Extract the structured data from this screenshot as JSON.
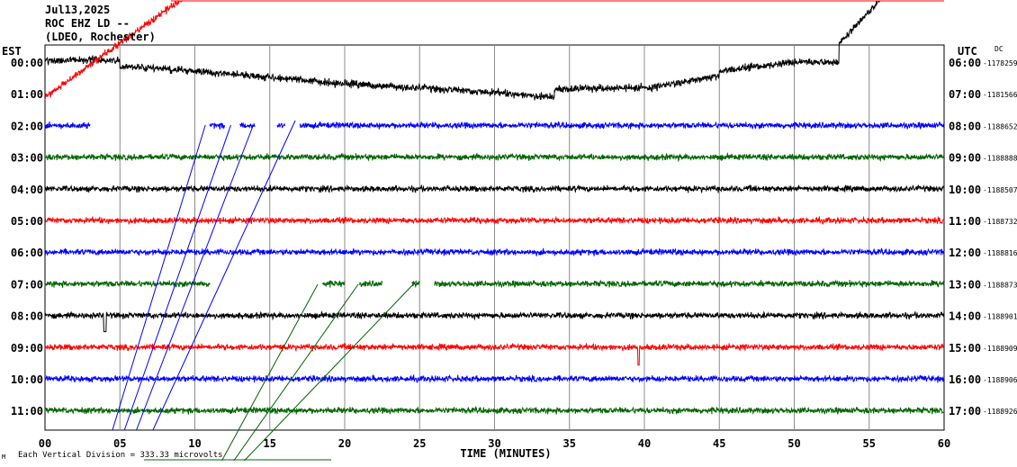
{
  "header": {
    "date": "Jul13,2025",
    "station": "ROC EHZ LD --",
    "network": "(LDEO, Rochester)",
    "left_zone": "EST",
    "right_zone": "UTC",
    "dc_label": "DC"
  },
  "footer": {
    "scale_note": "Each Vertical Division = 333.33 microvolts",
    "mark": "M"
  },
  "chart_data": {
    "type": "line",
    "title": "",
    "xlabel": "TIME (MINUTES)",
    "ylabel": "",
    "xlim": [
      0,
      60
    ],
    "x_ticks": [
      "00",
      "05",
      "10",
      "15",
      "20",
      "25",
      "30",
      "35",
      "40",
      "45",
      "50",
      "55",
      "60"
    ],
    "rows": [
      {
        "est": "00:00",
        "utc": "06:00",
        "dc": "-1178259",
        "color": "#000000"
      },
      {
        "est": "01:00",
        "utc": "07:00",
        "dc": "-1181566",
        "color": "#ff0000"
      },
      {
        "est": "02:00",
        "utc": "08:00",
        "dc": "-1188652",
        "color": "#0000ff"
      },
      {
        "est": "03:00",
        "utc": "09:00",
        "dc": "-1188888",
        "color": "#006400"
      },
      {
        "est": "04:00",
        "utc": "10:00",
        "dc": "-1188507",
        "color": "#000000"
      },
      {
        "est": "05:00",
        "utc": "11:00",
        "dc": "-1188732",
        "color": "#ff0000"
      },
      {
        "est": "06:00",
        "utc": "12:00",
        "dc": "-1188816",
        "color": "#0000ff"
      },
      {
        "est": "07:00",
        "utc": "13:00",
        "dc": "-1188873",
        "color": "#006400"
      },
      {
        "est": "08:00",
        "utc": "14:00",
        "dc": "-1188901",
        "color": "#000000"
      },
      {
        "est": "09:00",
        "utc": "15:00",
        "dc": "-1188909",
        "color": "#ff0000"
      },
      {
        "est": "10:00",
        "utc": "16:00",
        "dc": "-1188906",
        "color": "#0000ff"
      },
      {
        "est": "11:00",
        "utc": "17:00",
        "dc": "-1188926",
        "color": "#006400"
      }
    ],
    "grid": true
  }
}
